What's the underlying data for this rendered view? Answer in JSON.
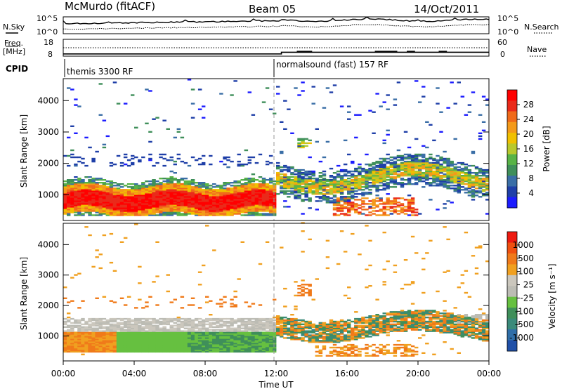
{
  "header": {
    "station": "McMurdo (fitACF)",
    "beam": "Beam 05",
    "date": "14/Oct/2011"
  },
  "side_labels": {
    "nsky": "N.Sky",
    "nsearch": "N.Search",
    "freq_line1": "Freq.",
    "freq_line2": "[MHz]",
    "nave": "Nave",
    "cpid": "CPID"
  },
  "noise_panel": {
    "left_ticks": [
      "10^5",
      "10^0"
    ],
    "right_ticks": [
      "10^5",
      "10^0"
    ]
  },
  "freq_panel": {
    "left_ticks": [
      "18",
      "8"
    ],
    "right_ticks": [
      "60",
      "0"
    ],
    "nave_steps": [
      {
        "start": 0.0,
        "end": 12.0,
        "value": 8
      },
      {
        "start": 12.0,
        "end": 12.3,
        "value": 8
      },
      {
        "start": 13.2,
        "end": 14.0,
        "value": 17
      },
      {
        "start": 17.6,
        "end": 18.8,
        "value": 17
      },
      {
        "start": 19.4,
        "end": 19.8,
        "value": 17
      },
      {
        "start": 21.2,
        "end": 21.6,
        "value": 17
      }
    ]
  },
  "cpid_segments": [
    {
      "label": "themis 3300 RF",
      "start_hour": 0
    },
    {
      "label": "normalsound (fast) 157 RF",
      "start_hour": 12
    }
  ],
  "time_axis": {
    "label": "Time UT",
    "ticks": [
      "00:00",
      "04:00",
      "08:00",
      "12:00",
      "16:00",
      "20:00",
      "00:00"
    ],
    "range_hours": [
      0,
      24
    ]
  },
  "range_axis": {
    "label": "Slant Range [km]",
    "ticks": [
      "1000",
      "2000",
      "3000",
      "4000"
    ],
    "tick_values": [
      1000,
      2000,
      3000,
      4000
    ],
    "range_km": [
      180,
      4700
    ]
  },
  "power_panel": {
    "colorbar_label": "Power [dB]",
    "colorbar_ticks": [
      "4",
      "8",
      "12",
      "16",
      "20",
      "24",
      "28"
    ],
    "colors": [
      "#1c1cff",
      "#1f3fa8",
      "#3a6ea6",
      "#3f8f5a",
      "#58b346",
      "#b8c82c",
      "#f0c000",
      "#f49a1a",
      "#f06a1a",
      "#ea2a1a",
      "#ff0000"
    ]
  },
  "velocity_panel": {
    "colorbar_label": "Velocity [m s⁻¹]",
    "colorbar_ticks": [
      "1000",
      "500",
      "100",
      "25",
      "-25",
      "-100",
      "-500",
      "-1000"
    ],
    "colors": [
      "#2050a8",
      "#2f6ea8",
      "#3a8a7a",
      "#3f8f5a",
      "#66c040",
      "#bcbcb4",
      "#cbc7bd",
      "#f0a020",
      "#f07a1a",
      "#f05010",
      "#ee1a10"
    ]
  },
  "chart_data": [
    {
      "type": "line",
      "title": "McMurdo (fitACF) Beam 05 14/Oct/2011",
      "series": [
        {
          "name": "N.Sky",
          "x": [
            0,
            3,
            6,
            9,
            12,
            13,
            15,
            18,
            21,
            24
          ],
          "values": [
            2.5,
            2.8,
            3.0,
            3.3,
            3.5,
            4.2,
            4.0,
            3.8,
            3.6,
            3.2
          ]
        },
        {
          "name": "N.Search",
          "x": [
            0,
            3,
            6,
            9,
            12,
            13,
            15,
            18,
            21,
            24
          ],
          "values": [
            0.8,
            1.0,
            1.2,
            1.3,
            1.3,
            1.8,
            1.6,
            1.5,
            1.4,
            1.2
          ]
        }
      ],
      "ylim": [
        0,
        5
      ]
    },
    {
      "type": "heatmap",
      "colorbar_label": "Power [dB]",
      "xlabel": "",
      "ylabel": "Slant Range [km]",
      "xlim": [
        0,
        24
      ],
      "ylim": [
        180,
        4700
      ],
      "zlim": [
        0,
        30
      ]
    },
    {
      "type": "heatmap",
      "colorbar_label": "Velocity [m s⁻¹]",
      "xlabel": "Time UT",
      "ylabel": "Slant Range [km]",
      "xlim": [
        0,
        24
      ],
      "ylim": [
        180,
        4700
      ],
      "zlim": [
        -1000,
        1000
      ]
    }
  ]
}
